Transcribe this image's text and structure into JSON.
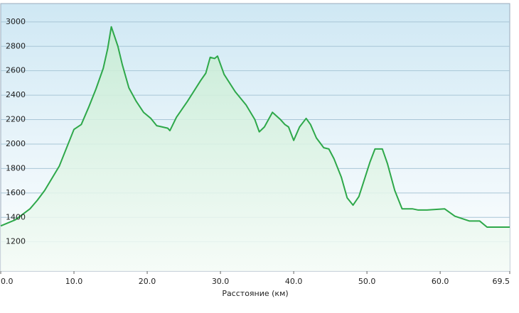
{
  "chart_data": {
    "type": "area",
    "x_label": "Расстояние (км)",
    "x": [
      0,
      2,
      4,
      5,
      6,
      8,
      10,
      11,
      12,
      13,
      14,
      14.6,
      15.1,
      16.0,
      16.6,
      17.5,
      18.5,
      19.5,
      20.5,
      21.3,
      21.7,
      22.8,
      23.1,
      24.0,
      25.5,
      27.3,
      28.0,
      28.6,
      29.2,
      29.6,
      30.5,
      32.0,
      33.5,
      34.7,
      35.3,
      36.0,
      37.1,
      38.2,
      38.8,
      39.3,
      40.0,
      40.8,
      41.7,
      42.3,
      43.1,
      44.1,
      44.8,
      45.5,
      46.5,
      47.3,
      48.1,
      48.9,
      49.6,
      50.4,
      51.1,
      52.1,
      52.8,
      53.8,
      54.8,
      56.2,
      57.0,
      58.2,
      60.6,
      62.0,
      64.0,
      65.4,
      66.4,
      67.5,
      69.5
    ],
    "values": [
      1330,
      1380,
      1470,
      1540,
      1620,
      1820,
      2120,
      2160,
      2300,
      2450,
      2620,
      2780,
      2960,
      2800,
      2650,
      2460,
      2350,
      2260,
      2210,
      2150,
      2145,
      2130,
      2110,
      2220,
      2350,
      2520,
      2580,
      2710,
      2700,
      2720,
      2570,
      2430,
      2320,
      2200,
      2100,
      2140,
      2260,
      2200,
      2160,
      2140,
      2030,
      2140,
      2210,
      2160,
      2050,
      1970,
      1960,
      1880,
      1730,
      1560,
      1500,
      1570,
      1700,
      1850,
      1960,
      1960,
      1840,
      1620,
      1470,
      1470,
      1460,
      1460,
      1470,
      1410,
      1370,
      1370,
      1320,
      1320,
      1320
    ],
    "color": "#2ea84a",
    "xlim": [
      0,
      69.5
    ],
    "ylim": [
      960,
      3150
    ],
    "xticks": [
      {
        "value": 0,
        "label": "0.0"
      },
      {
        "value": 10,
        "label": "10.0"
      },
      {
        "value": 20,
        "label": "20.0"
      },
      {
        "value": 30,
        "label": "30.0"
      },
      {
        "value": 40,
        "label": "40.0"
      },
      {
        "value": 50,
        "label": "50.0"
      },
      {
        "value": 60,
        "label": "60.0"
      },
      {
        "value": 69.5,
        "label": "69.5"
      }
    ],
    "yticks": [
      1200,
      1400,
      1600,
      1800,
      2000,
      2200,
      2400,
      2600,
      2800,
      3000
    ],
    "grid": true
  }
}
